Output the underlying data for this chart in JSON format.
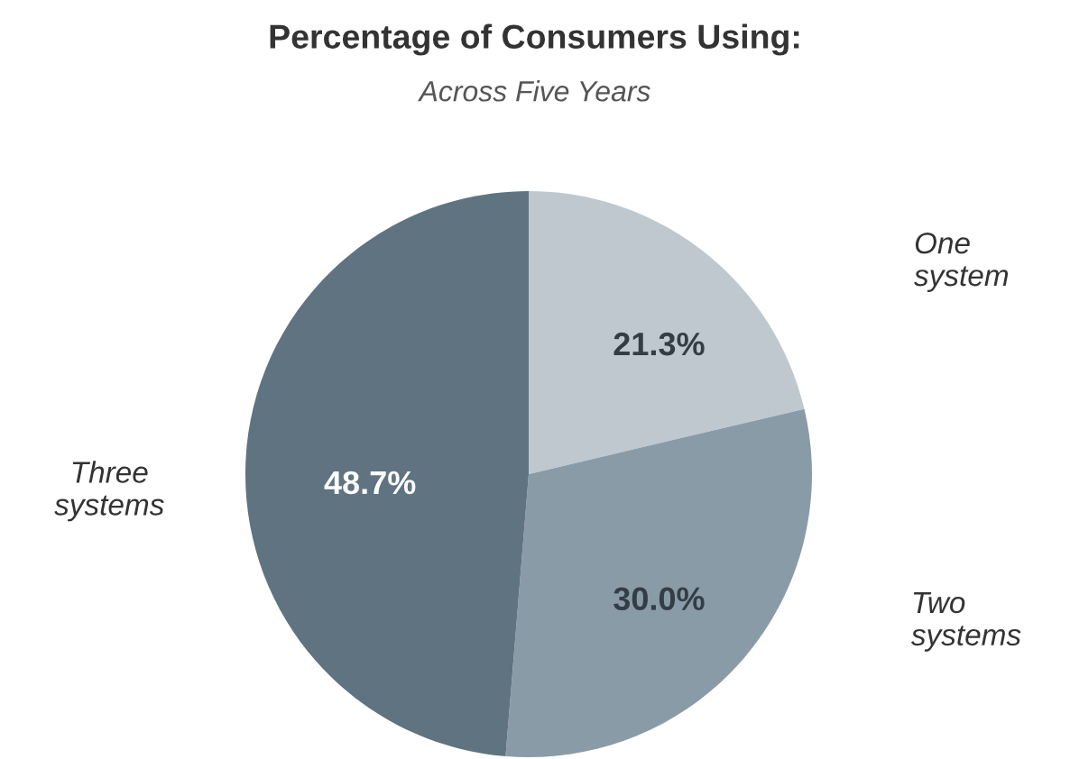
{
  "chart_data": {
    "type": "pie",
    "title": "Percentage of Consumers Using:",
    "subtitle": "Across Five Years",
    "categories": [
      "One system",
      "Two systems",
      "Three systems"
    ],
    "values": [
      21.3,
      30.0,
      48.7
    ],
    "colors": [
      "#bfc8ce",
      "#8a9ba8",
      "#5f7380"
    ],
    "value_labels": [
      "21.3%",
      "30.0%",
      "48.7%"
    ],
    "legend": false
  }
}
